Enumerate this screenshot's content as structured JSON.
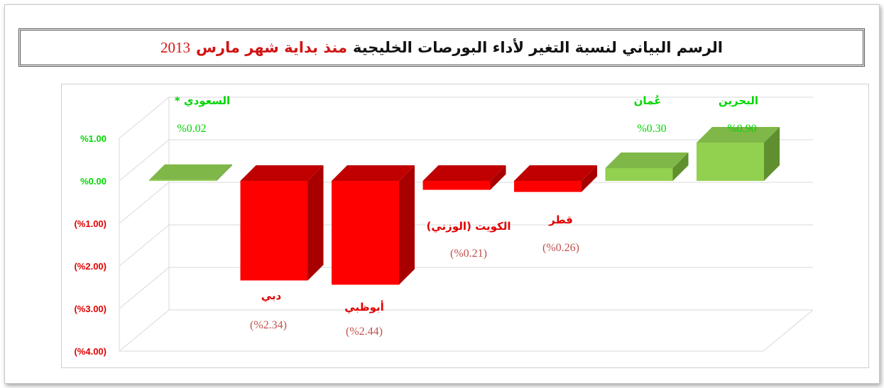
{
  "title": {
    "main": "الرسم البياني لنسبة التغير لأداء البورصات الخليجية",
    "highlight": "منذ بداية شهر مارس",
    "year": "2013"
  },
  "colors": {
    "positive": "#92d050",
    "positive_top": "#7fb848",
    "positive_side": "#5f8f2e",
    "negative": "#ff0000",
    "negative_top": "#c00000",
    "negative_side": "#a80000",
    "green_label": "#00d600",
    "red_label": "#e00000",
    "value_label": "#c0504d",
    "title_red": "#d11414"
  },
  "chart_data": {
    "type": "bar",
    "categories": [
      "السعودي *",
      "دبي",
      "أبوظبي",
      "الكويت (الوزني)",
      "قطر",
      "عُمان",
      "البحرين"
    ],
    "values": [
      0.02,
      -2.34,
      -2.44,
      -0.21,
      -0.26,
      0.3,
      0.9
    ],
    "value_labels": [
      "%0.02",
      "(%2.34)",
      "(%2.44)",
      "(%0.21)",
      "(%0.26)",
      "%0.30",
      "%0.90"
    ],
    "y_tick_labels": [
      "%1.00",
      "%0.00",
      "(%1.00)",
      "(%2.00)",
      "(%3.00)",
      "(%4.00)"
    ],
    "y_ticks": [
      1,
      0,
      -1,
      -2,
      -3,
      -4
    ],
    "ylim": [
      -4,
      1
    ],
    "grid": true,
    "legend": "none"
  }
}
